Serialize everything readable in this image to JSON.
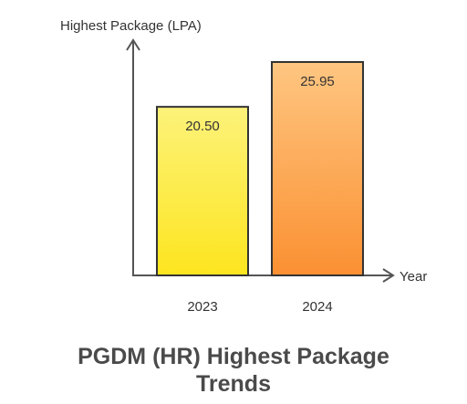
{
  "chart_data": {
    "type": "bar",
    "title_lines": [
      "PGDM (HR) Highest Package",
      "Trends"
    ],
    "xlabel": "Year",
    "ylabel": "Highest Package (LPA)",
    "categories": [
      "2023",
      "2024"
    ],
    "values": [
      20.5,
      25.95
    ],
    "value_labels": [
      "20.50",
      "25.95"
    ],
    "ylim": [
      0,
      28.5
    ],
    "grid": false,
    "legend": "none",
    "colors": {
      "bars": [
        {
          "top": "#fdf27a",
          "bottom": "#fde51f"
        },
        {
          "top": "#fec681",
          "bottom": "#fb9032"
        }
      ],
      "bar_stroke": "#333333",
      "axis": "#555555",
      "text": "#333333",
      "title": "#4a4a4a"
    }
  }
}
